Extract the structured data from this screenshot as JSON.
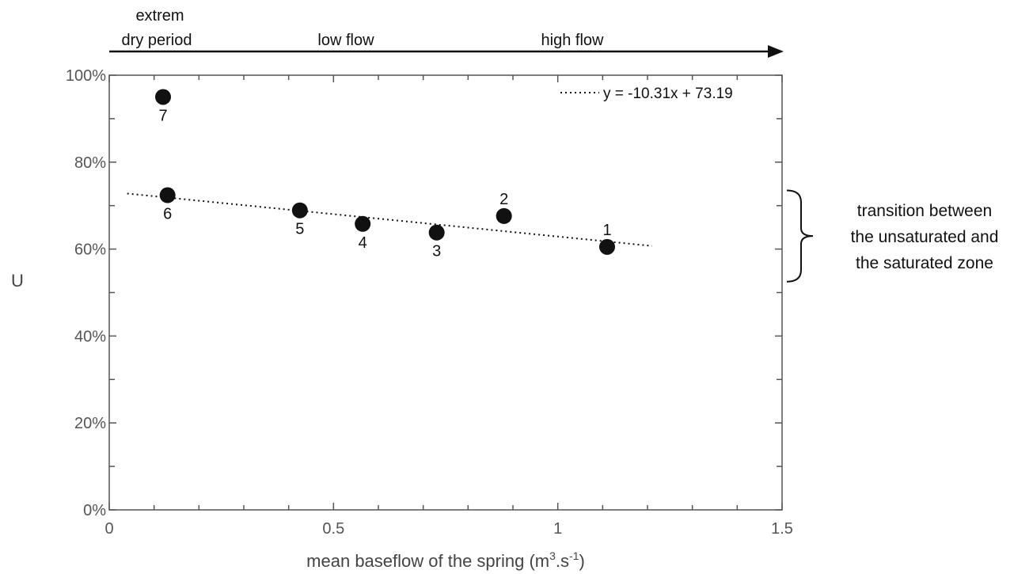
{
  "chart_data": {
    "type": "scatter",
    "title": "",
    "xlabel": "mean baseflow of the spring (m",
    "xlabel_sup1": "3",
    "xlabel_mid": ".s",
    "xlabel_sup2": "-1",
    "xlabel_end": ")",
    "ylabel": "U",
    "xlim": [
      0,
      1.5
    ],
    "ylim": [
      0,
      100
    ],
    "x_ticks": [
      0,
      0.5,
      1,
      1.5
    ],
    "x_tick_labels": [
      "0",
      "0.5",
      "1",
      "1.5"
    ],
    "y_ticks": [
      0,
      20,
      40,
      60,
      80,
      100
    ],
    "y_tick_labels": [
      "0%",
      "20%",
      "40%",
      "60%",
      "80%",
      "100%"
    ],
    "grid": false,
    "points": [
      {
        "label": "1",
        "x": 1.11,
        "y": 60.5
      },
      {
        "label": "2",
        "x": 0.88,
        "y": 67.6
      },
      {
        "label": "3",
        "x": 0.73,
        "y": 63.8
      },
      {
        "label": "4",
        "x": 0.565,
        "y": 65.8
      },
      {
        "label": "5",
        "x": 0.425,
        "y": 68.9
      },
      {
        "label": "6",
        "x": 0.13,
        "y": 72.4
      },
      {
        "label": "7",
        "x": 0.12,
        "y": 95.0
      }
    ],
    "trendline": {
      "equation": "y = -10.31x + 73.19",
      "slope": -10.31,
      "intercept": 73.19,
      "x_range": [
        0.04,
        1.21
      ]
    },
    "legend_position": "top-right",
    "phases": [
      "extrem",
      "dry period",
      "low flow",
      "high flow"
    ],
    "annotation": {
      "lines": [
        "transition between",
        "the unsaturated and",
        "the saturated zone"
      ],
      "y_range": [
        52.5,
        73.5
      ]
    }
  }
}
